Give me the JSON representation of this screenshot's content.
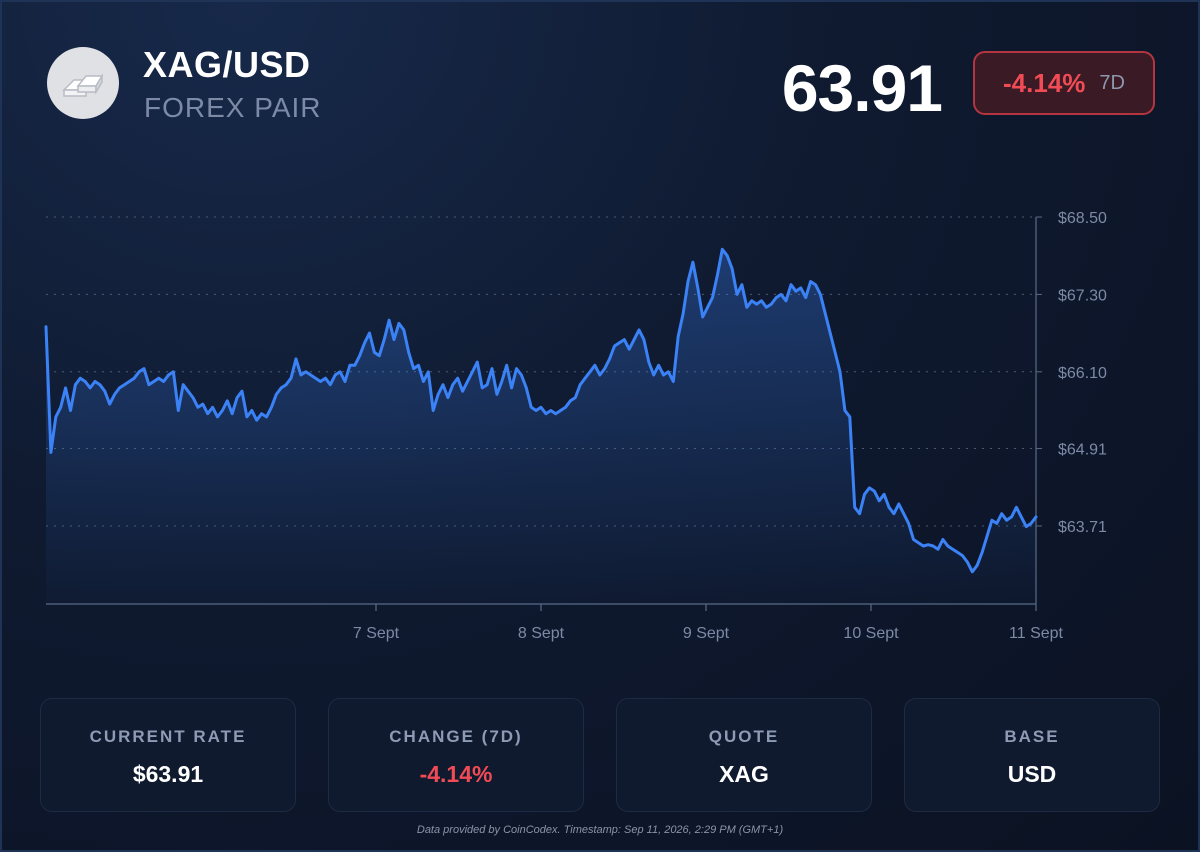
{
  "header": {
    "pair": "XAG/USD",
    "subtitle": "FOREX PAIR",
    "logo_icon": "silver-bars-icon",
    "price": "63.91",
    "change_pct": "-4.14%",
    "change_period": "7D"
  },
  "colors": {
    "line": "#3b82f6",
    "negative": "#f14b55",
    "grid": "#5a6a86",
    "axis_text": "#7d8aa6"
  },
  "chart_data": {
    "type": "line",
    "x_start": "2026-09-05",
    "x_end": "2026-09-11",
    "x_ticks": [
      "7 Sept",
      "8 Sept",
      "9 Sept",
      "10 Sept",
      "11 Sept"
    ],
    "x_tick_dates": [
      "2026-09-07",
      "2026-09-08",
      "2026-09-09",
      "2026-09-10",
      "2026-09-11"
    ],
    "y_ticks": [
      "$68.50",
      "$67.30",
      "$66.10",
      "$64.91",
      "$63.71"
    ],
    "ylim": [
      62.5,
      68.5
    ],
    "grid": true,
    "series": [
      {
        "values": [
          66.8,
          64.85,
          65.4,
          65.55,
          65.85,
          65.5,
          65.9,
          66.0,
          65.95,
          65.85,
          65.95,
          65.9,
          65.8,
          65.6,
          65.75,
          65.85,
          65.9,
          65.95,
          66.0,
          66.1,
          66.15,
          65.9,
          65.95,
          66.0,
          65.95,
          66.05,
          66.1,
          65.5,
          65.9,
          65.8,
          65.7,
          65.55,
          65.6,
          65.45,
          65.55,
          65.4,
          65.5,
          65.65,
          65.45,
          65.7,
          65.8,
          65.4,
          65.5,
          65.35,
          65.45,
          65.4,
          65.55,
          65.75,
          65.85,
          65.9,
          66.0,
          66.3,
          66.05,
          66.1,
          66.05,
          66.0,
          65.95,
          66.0,
          65.9,
          66.05,
          66.1,
          65.95,
          66.2,
          66.2,
          66.35,
          66.55,
          66.7,
          66.4,
          66.35,
          66.6,
          66.9,
          66.6,
          66.85,
          66.75,
          66.4,
          66.15,
          66.2,
          65.95,
          66.1,
          65.5,
          65.75,
          65.9,
          65.7,
          65.9,
          66.0,
          65.8,
          65.95,
          66.1,
          66.25,
          65.85,
          65.9,
          66.15,
          65.75,
          65.95,
          66.2,
          65.85,
          66.15,
          66.05,
          65.85,
          65.55,
          65.5,
          65.55,
          65.45,
          65.5,
          65.45,
          65.5,
          65.55,
          65.65,
          65.7,
          65.9,
          66.0,
          66.1,
          66.2,
          66.05,
          66.15,
          66.3,
          66.5,
          66.55,
          66.6,
          66.45,
          66.6,
          66.75,
          66.6,
          66.25,
          66.05,
          66.2,
          66.05,
          66.1,
          65.95,
          66.65,
          67.0,
          67.5,
          67.8,
          67.4,
          66.95,
          67.1,
          67.25,
          67.6,
          68.0,
          67.9,
          67.7,
          67.3,
          67.45,
          67.1,
          67.2,
          67.15,
          67.2,
          67.1,
          67.15,
          67.25,
          67.3,
          67.2,
          67.45,
          67.35,
          67.4,
          67.25,
          67.5,
          67.45,
          67.3,
          67.0,
          66.7,
          66.4,
          66.1,
          65.5,
          65.4,
          64.0,
          63.9,
          64.2,
          64.3,
          64.25,
          64.1,
          64.2,
          64.0,
          63.9,
          64.05,
          63.9,
          63.75,
          63.5,
          63.45,
          63.4,
          63.42,
          63.4,
          63.35,
          63.5,
          63.4,
          63.35,
          63.3,
          63.25,
          63.15,
          63.0,
          63.1,
          63.3,
          63.55,
          63.8,
          63.75,
          63.9,
          63.8,
          63.85,
          64.0,
          63.85,
          63.7,
          63.75,
          63.85
        ]
      }
    ]
  },
  "stats": [
    {
      "label": "CURRENT RATE",
      "value": "$63.91",
      "tone": "neutral"
    },
    {
      "label": "CHANGE (7D)",
      "value": "-4.14%",
      "tone": "negative"
    },
    {
      "label": "QUOTE",
      "value": "XAG",
      "tone": "neutral"
    },
    {
      "label": "BASE",
      "value": "USD",
      "tone": "neutral"
    }
  ],
  "footer": "Data provided by CoinCodex. Timestamp: Sep 11, 2026, 2:29 PM (GMT+1)"
}
